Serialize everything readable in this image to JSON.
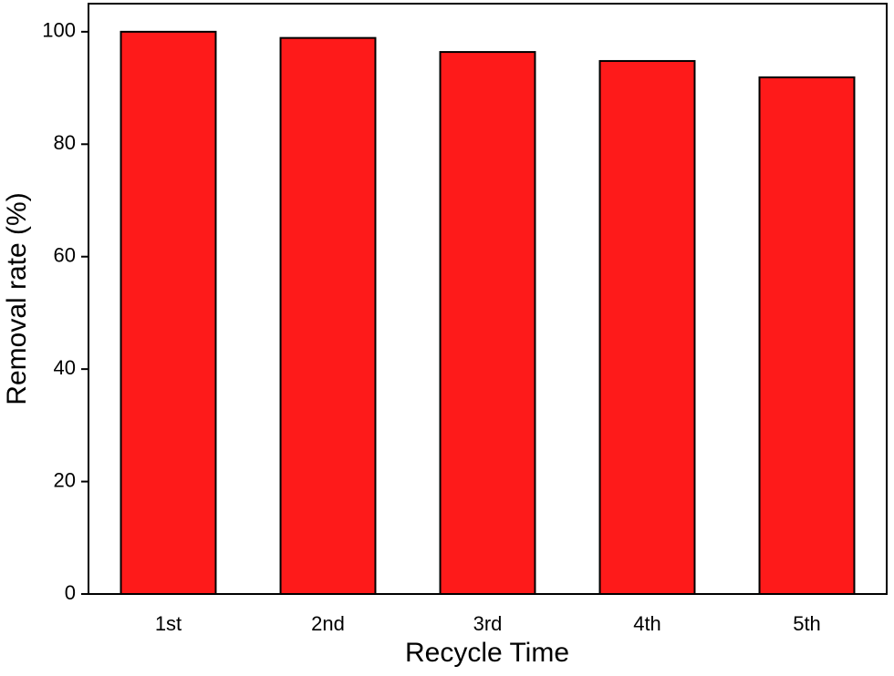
{
  "chart_data": {
    "type": "bar",
    "x_label": "Recycle Time",
    "y_label": "Removal rate (%)",
    "categories": [
      "1st",
      "2nd",
      "3rd",
      "4th",
      "5th"
    ],
    "values": [
      100,
      98.9,
      96.4,
      94.8,
      91.9
    ],
    "color": "#fe1a1a",
    "ylim": [
      0,
      105
    ],
    "yticks": [
      0,
      20,
      40,
      60,
      80,
      100
    ],
    "grid": false
  }
}
